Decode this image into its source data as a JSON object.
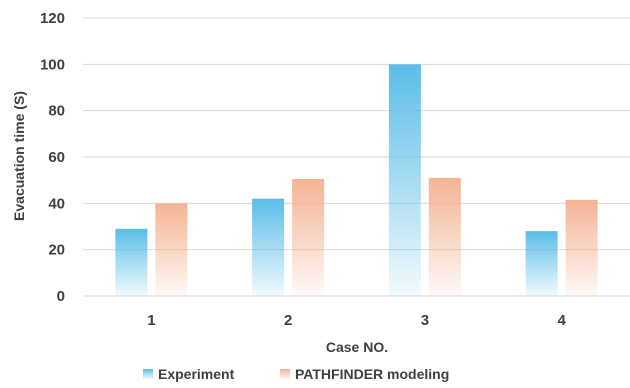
{
  "chart_data": {
    "type": "bar",
    "title": "",
    "xlabel": "Case NO.",
    "ylabel": "Evacuation time (S)",
    "categories": [
      "1",
      "2",
      "3",
      "4"
    ],
    "series": [
      {
        "name": "Experiment",
        "values": [
          29,
          42,
          100,
          28
        ],
        "color": "#5bbde8"
      },
      {
        "name": "PATHFINDER modeling",
        "values": [
          40,
          50.5,
          51,
          41.5
        ],
        "color": "#f4b393"
      }
    ],
    "ylim": [
      0,
      120
    ],
    "yticks": [
      0,
      20,
      40,
      60,
      80,
      100,
      120
    ],
    "grid": true,
    "legend": "bottom"
  }
}
